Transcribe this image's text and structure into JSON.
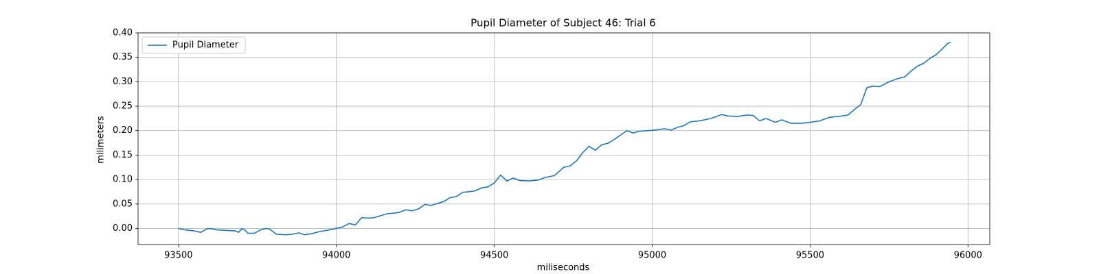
{
  "chart_data": {
    "type": "line",
    "title": "Pupil Diameter of Subject 46: Trial 6",
    "xlabel": "miliseconds",
    "ylabel": "milimeters",
    "x": [
      93500,
      93520,
      93550,
      93570,
      93590,
      93600,
      93620,
      93650,
      93680,
      93690,
      93700,
      93710,
      93720,
      93740,
      93760,
      93780,
      93790,
      93810,
      93840,
      93860,
      93880,
      93900,
      93920,
      93950,
      93970,
      94000,
      94020,
      94040,
      94060,
      94080,
      94100,
      94120,
      94140,
      94160,
      94180,
      94200,
      94220,
      94240,
      94260,
      94280,
      94300,
      94320,
      94340,
      94360,
      94380,
      94400,
      94420,
      94440,
      94460,
      94480,
      94500,
      94520,
      94540,
      94560,
      94580,
      94610,
      94640,
      94660,
      94690,
      94720,
      94740,
      94760,
      94780,
      94800,
      94820,
      94840,
      94860,
      94880,
      94900,
      94920,
      94940,
      94960,
      94990,
      95020,
      95040,
      95060,
      95080,
      95100,
      95120,
      95150,
      95180,
      95200,
      95220,
      95240,
      95270,
      95300,
      95320,
      95340,
      95360,
      95390,
      95410,
      95440,
      95470,
      95500,
      95530,
      95560,
      95600,
      95620,
      95640,
      95660,
      95680,
      95700,
      95720,
      95750,
      95780,
      95800,
      95820,
      95840,
      95860,
      95880,
      95900,
      95920,
      95935,
      95945
    ],
    "series": [
      {
        "name": "Pupil Diameter",
        "color": "#1f77b4",
        "values": [
          0.0,
          -0.003,
          -0.005,
          -0.008,
          -0.001,
          0.0,
          -0.003,
          -0.004,
          -0.005,
          -0.008,
          -0.001,
          -0.003,
          -0.01,
          -0.01,
          -0.003,
          0.0,
          -0.002,
          -0.012,
          -0.013,
          -0.012,
          -0.009,
          -0.013,
          -0.011,
          -0.006,
          -0.004,
          0.0,
          0.003,
          0.01,
          0.007,
          0.022,
          0.021,
          0.022,
          0.026,
          0.03,
          0.031,
          0.033,
          0.038,
          0.036,
          0.04,
          0.049,
          0.047,
          0.051,
          0.055,
          0.063,
          0.065,
          0.074,
          0.075,
          0.077,
          0.083,
          0.085,
          0.093,
          0.109,
          0.097,
          0.103,
          0.098,
          0.097,
          0.099,
          0.104,
          0.108,
          0.125,
          0.128,
          0.138,
          0.155,
          0.168,
          0.16,
          0.171,
          0.174,
          0.182,
          0.191,
          0.2,
          0.195,
          0.199,
          0.2,
          0.202,
          0.204,
          0.201,
          0.207,
          0.21,
          0.218,
          0.22,
          0.224,
          0.228,
          0.233,
          0.23,
          0.229,
          0.232,
          0.231,
          0.22,
          0.225,
          0.217,
          0.222,
          0.215,
          0.215,
          0.217,
          0.22,
          0.227,
          0.23,
          0.232,
          0.243,
          0.253,
          0.288,
          0.291,
          0.29,
          0.3,
          0.307,
          0.31,
          0.322,
          0.332,
          0.338,
          0.348,
          0.356,
          0.368,
          0.378,
          0.381
        ]
      }
    ],
    "xlim": [
      93372,
      96069
    ],
    "ylim": [
      -0.033,
      0.4
    ],
    "xticks": [
      93500,
      94000,
      94500,
      95000,
      95500,
      96000
    ],
    "yticks": [
      {
        "value": 0,
        "label": "0.00"
      },
      {
        "value": 0.05,
        "label": "0.05"
      },
      {
        "value": 0.1,
        "label": "0.10"
      },
      {
        "value": 0.15,
        "label": "0.15"
      },
      {
        "value": 0.2,
        "label": "0.20"
      },
      {
        "value": 0.25,
        "label": "0.25"
      },
      {
        "value": 0.3,
        "label": "0.30"
      },
      {
        "value": 0.35,
        "label": "0.35"
      },
      {
        "value": 0.4,
        "label": "0.40"
      }
    ],
    "grid": true,
    "legend": "upper-left"
  }
}
